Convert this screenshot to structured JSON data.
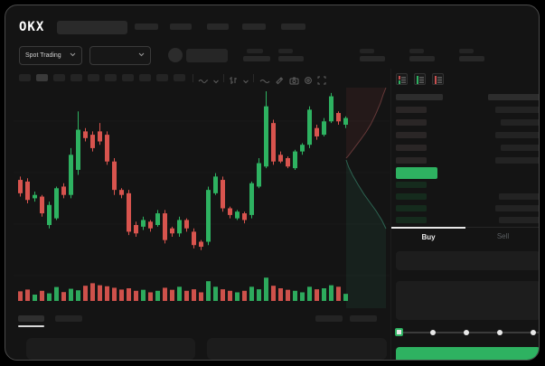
{
  "app": {
    "logo": "OKX"
  },
  "subheader": {
    "market_type": "Spot Trading"
  },
  "trade_panel": {
    "buy_label": "Buy",
    "sell_label": "Sell"
  },
  "colors": {
    "up": "#2eb261",
    "down": "#d8544e",
    "accent": "#2eb261",
    "text_primary": "#e8e8e8",
    "text_muted": "#5a5e61",
    "grid": "#1e1e1e",
    "depth_ask_line": "#6d3c3c",
    "depth_bid_line": "#2f6b58"
  },
  "order_book": {
    "column_headers": {
      "left_w": 52,
      "right_w": 58
    },
    "asks": [
      {
        "p": 34,
        "a": 50
      },
      {
        "p": 34,
        "a": 44
      },
      {
        "p": 34,
        "a": 50
      },
      {
        "p": 34,
        "a": 44
      },
      {
        "p": 34,
        "a": 50
      }
    ],
    "last_price": {
      "w": 46
    },
    "bids": [
      {
        "p": 34,
        "a": 0
      },
      {
        "p": 34,
        "a": 46
      },
      {
        "p": 34,
        "a": 50
      },
      {
        "p": 34,
        "a": 46
      }
    ]
  },
  "chart_data": {
    "type": "candlestick",
    "title": "",
    "xlabel": "",
    "ylabel": "",
    "price_scale": [
      0,
      100
    ],
    "grid": true,
    "candles": [
      [
        47,
        49,
        37,
        39
      ],
      [
        46,
        48,
        33,
        35
      ],
      [
        36,
        40,
        34,
        38
      ],
      [
        37,
        38,
        25,
        27
      ],
      [
        20,
        34,
        18,
        32
      ],
      [
        24,
        43,
        23,
        42
      ],
      [
        43,
        45,
        36,
        38
      ],
      [
        38,
        66,
        36,
        62
      ],
      [
        53,
        88,
        50,
        77
      ],
      [
        76,
        78,
        70,
        72
      ],
      [
        74,
        76,
        64,
        66
      ],
      [
        76,
        81,
        68,
        70
      ],
      [
        74,
        76,
        56,
        58
      ],
      [
        58,
        60,
        38,
        41
      ],
      [
        41,
        42,
        36,
        38
      ],
      [
        39,
        41,
        14,
        16
      ],
      [
        20,
        22,
        13,
        15
      ],
      [
        19,
        25,
        17,
        23
      ],
      [
        22,
        23,
        16,
        18
      ],
      [
        20,
        29,
        19,
        27
      ],
      [
        27,
        29,
        9,
        11
      ],
      [
        18,
        19,
        13,
        15
      ],
      [
        15,
        25,
        13,
        23
      ],
      [
        23,
        24,
        16,
        18
      ],
      [
        16,
        18,
        6,
        8
      ],
      [
        10,
        11,
        5,
        7
      ],
      [
        10,
        43,
        8,
        41
      ],
      [
        39,
        51,
        38,
        49
      ],
      [
        47,
        49,
        28,
        30
      ],
      [
        30,
        31,
        24,
        26
      ],
      [
        24,
        29,
        23,
        28
      ],
      [
        27,
        28,
        21,
        23
      ],
      [
        26,
        46,
        24,
        45
      ],
      [
        43,
        60,
        42,
        57
      ],
      [
        55,
        100,
        54,
        91
      ],
      [
        81,
        83,
        56,
        58
      ],
      [
        62,
        64,
        57,
        58
      ],
      [
        60,
        61,
        54,
        55
      ],
      [
        54,
        65,
        53,
        64
      ],
      [
        64,
        69,
        62,
        68
      ],
      [
        68,
        91,
        66,
        89
      ],
      [
        78,
        80,
        71,
        73
      ],
      [
        74,
        84,
        73,
        82
      ],
      [
        82,
        99,
        81,
        97
      ],
      [
        87,
        88,
        80,
        82
      ],
      [
        80,
        85,
        78,
        84
      ]
    ],
    "volumes": [
      38,
      45,
      25,
      40,
      30,
      55,
      35,
      48,
      42,
      60,
      70,
      62,
      58,
      52,
      45,
      50,
      40,
      44,
      34,
      40,
      52,
      44,
      56,
      40,
      46,
      34,
      78,
      56,
      46,
      40,
      34,
      40,
      56,
      46,
      92,
      60,
      50,
      44,
      40,
      34,
      56,
      46,
      50,
      62,
      56,
      28
    ],
    "depth": {
      "asks": [
        [
          1.0,
          0.0
        ],
        [
          0.93,
          0.1
        ],
        [
          0.86,
          0.22
        ],
        [
          0.74,
          0.38
        ],
        [
          0.62,
          0.52
        ],
        [
          0.5,
          0.63
        ],
        [
          0.36,
          0.74
        ],
        [
          0.2,
          0.86
        ],
        [
          0.05,
          0.97
        ],
        [
          0.0,
          1.0
        ]
      ],
      "bids": [
        [
          0.0,
          0.0
        ],
        [
          0.06,
          0.1
        ],
        [
          0.16,
          0.22
        ],
        [
          0.3,
          0.36
        ],
        [
          0.45,
          0.5
        ],
        [
          0.6,
          0.62
        ],
        [
          0.75,
          0.74
        ],
        [
          0.9,
          0.88
        ],
        [
          1.0,
          1.0
        ]
      ]
    }
  }
}
